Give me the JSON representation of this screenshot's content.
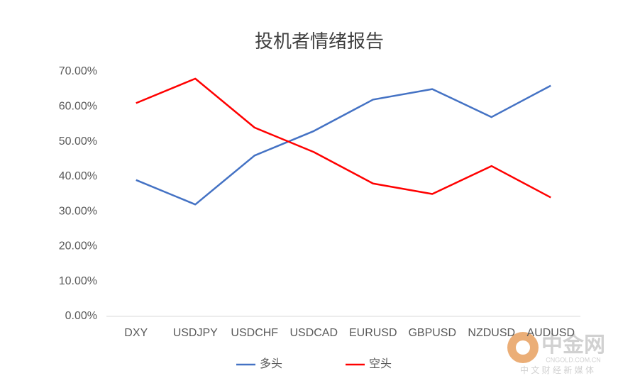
{
  "chart_data": {
    "type": "line",
    "title": "投机者情绪报告",
    "categories": [
      "DXY",
      "USDJPY",
      "USDCHF",
      "USDCAD",
      "EURUSD",
      "GBPUSD",
      "NZDUSD",
      "AUDUSD"
    ],
    "series": [
      {
        "name": "多头",
        "color": "#4472c4",
        "values": [
          39,
          32,
          46,
          53,
          62,
          65,
          57,
          66
        ]
      },
      {
        "name": "空头",
        "color": "#ff0000",
        "values": [
          61,
          68,
          54,
          47,
          38,
          35,
          43,
          34
        ]
      }
    ],
    "ylim": [
      0,
      70
    ],
    "yticks": [
      {
        "value": 0,
        "label": "0.00%"
      },
      {
        "value": 10,
        "label": "10.00%"
      },
      {
        "value": 20,
        "label": "20.00%"
      },
      {
        "value": 30,
        "label": "30.00%"
      },
      {
        "value": 40,
        "label": "40.00%"
      },
      {
        "value": 50,
        "label": "50.00%"
      },
      {
        "value": 60,
        "label": "60.00%"
      },
      {
        "value": 70,
        "label": "70.00%"
      }
    ],
    "grid": false,
    "legend": "bottom"
  },
  "watermark": {
    "name": "中金网",
    "site": "CNGOLD.COM.CN",
    "tagline": "中 文 财 经 新 媒 体"
  }
}
